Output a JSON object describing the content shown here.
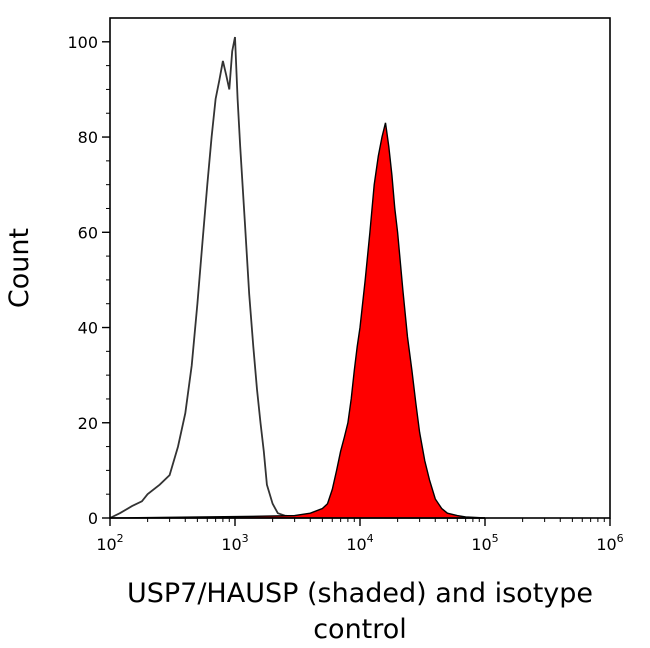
{
  "chart_data": {
    "type": "area",
    "title": "",
    "xlabel": "USP7/HAUSP (shaded) and isotype control",
    "xlabel_lines": [
      "USP7/HAUSP (shaded) and isotype",
      "control"
    ],
    "ylabel": "Count",
    "x_scale": "log",
    "xlim": [
      100,
      1000000
    ],
    "ylim": [
      0,
      105
    ],
    "grid": false,
    "legend": "none",
    "x_ticks": [
      {
        "base": "10",
        "exp": "2"
      },
      {
        "base": "10",
        "exp": "3"
      },
      {
        "base": "10",
        "exp": "4"
      },
      {
        "base": "10",
        "exp": "5"
      },
      {
        "base": "10",
        "exp": "6"
      }
    ],
    "y_ticks": [
      "0",
      "20",
      "40",
      "60",
      "80",
      "100"
    ],
    "y_tick_values": [
      0,
      20,
      40,
      60,
      80,
      100
    ],
    "series": [
      {
        "style": "outline",
        "color": "#333333",
        "x": [
          100,
          120,
          150,
          180,
          200,
          250,
          300,
          350,
          400,
          450,
          500,
          550,
          600,
          650,
          700,
          750,
          800,
          850,
          900,
          950,
          1000,
          1050,
          1100,
          1200,
          1300,
          1400,
          1500,
          1600,
          1700,
          1800,
          2000,
          2200,
          2500,
          3000,
          5000,
          10000,
          100000
        ],
        "y": [
          0,
          1,
          2.5,
          3.5,
          5,
          7,
          9,
          15,
          22,
          32,
          45,
          58,
          70,
          80,
          88,
          92,
          96,
          93,
          90,
          98,
          101,
          88,
          78,
          62,
          47,
          36,
          27,
          20,
          14,
          7,
          3,
          1,
          0.5,
          0.3,
          0.2,
          0.1,
          0
        ]
      },
      {
        "style": "filled",
        "color": "#ff0000",
        "outline_color": "#000000",
        "x": [
          100,
          1000,
          3000,
          4000,
          5000,
          5500,
          6000,
          6500,
          7000,
          7500,
          8000,
          8500,
          9000,
          9500,
          10000,
          11000,
          12000,
          13000,
          14000,
          15000,
          16000,
          17000,
          18000,
          19000,
          20000,
          22000,
          24000,
          26000,
          28000,
          30000,
          33000,
          36000,
          40000,
          45000,
          50000,
          60000,
          70000,
          100000
        ],
        "y": [
          0,
          0.3,
          0.5,
          1,
          2,
          3,
          6,
          10,
          14,
          17,
          20,
          25,
          31,
          36,
          40,
          50,
          60,
          70,
          76,
          80,
          83,
          78,
          72,
          65,
          60,
          48,
          38,
          31,
          24,
          18,
          12,
          8,
          4,
          2,
          1,
          0.5,
          0.2,
          0
        ]
      }
    ]
  }
}
